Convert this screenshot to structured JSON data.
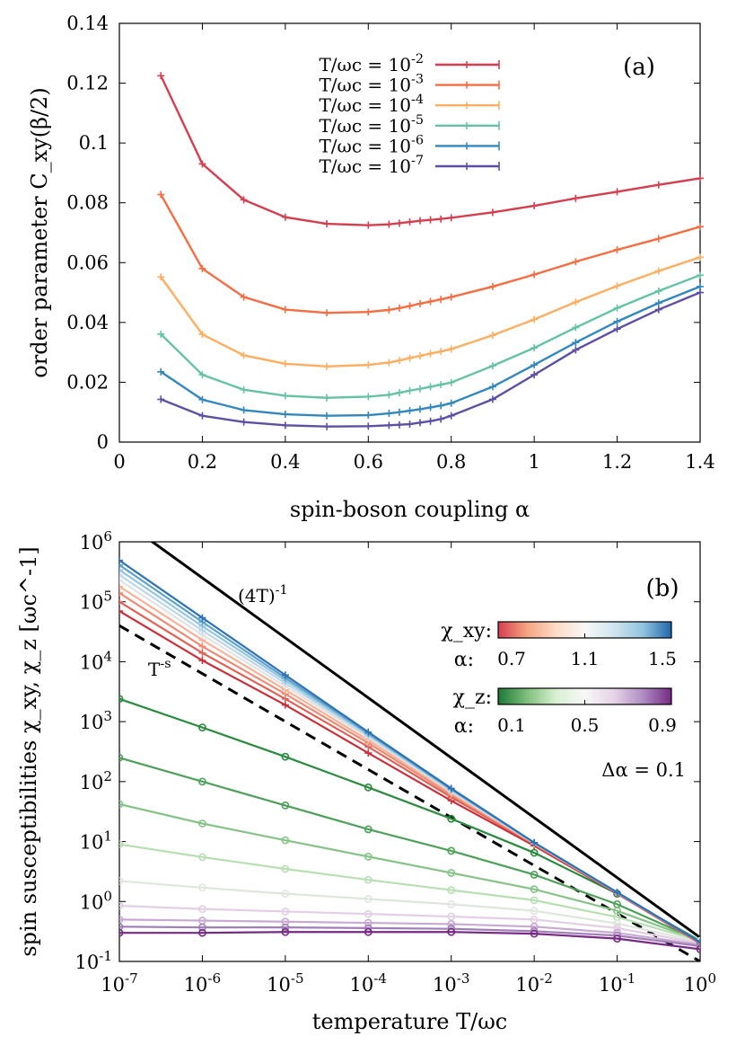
{
  "chart_data": [
    {
      "type": "line",
      "panel_label": "(a)",
      "xlabel": "spin-boson coupling α",
      "ylabel": "order parameter C_xy(β/2)",
      "xlim": [
        0,
        1.4
      ],
      "ylim": [
        0,
        0.14
      ],
      "xscale": "linear",
      "yscale": "linear",
      "xticks": [
        "0",
        "0.2",
        "0.4",
        "0.6",
        "0.8",
        "1",
        "1.2",
        "1.4"
      ],
      "yticks": [
        "0",
        "0.02",
        "0.04",
        "0.06",
        "0.08",
        "0.1",
        "0.12",
        "0.14"
      ],
      "grid": false,
      "legend_position": "top-center",
      "x": [
        0.1,
        0.2,
        0.3,
        0.4,
        0.5,
        0.6,
        0.65,
        0.675,
        0.7,
        0.725,
        0.75,
        0.775,
        0.8,
        0.9,
        1.0,
        1.1,
        1.2,
        1.3,
        1.4
      ],
      "series": [
        {
          "name": "T/ωc = 10^-2",
          "color": "#d53e4f",
          "values": [
            0.1225,
            0.093,
            0.081,
            0.0752,
            0.073,
            0.0725,
            0.0728,
            0.0732,
            0.0736,
            0.074,
            0.0743,
            0.0746,
            0.075,
            0.0768,
            0.079,
            0.0815,
            0.0837,
            0.086,
            0.0882
          ]
        },
        {
          "name": "T/ωc = 10^-3",
          "color": "#f46d43",
          "values": [
            0.0828,
            0.058,
            0.0485,
            0.0443,
            0.0432,
            0.0435,
            0.0442,
            0.0448,
            0.0455,
            0.0463,
            0.047,
            0.0477,
            0.0485,
            0.052,
            0.056,
            0.0603,
            0.0643,
            0.068,
            0.072
          ]
        },
        {
          "name": "T/ωc = 10^-4",
          "color": "#fdae61",
          "values": [
            0.0552,
            0.036,
            0.029,
            0.0262,
            0.0253,
            0.0258,
            0.0266,
            0.0273,
            0.0281,
            0.0288,
            0.0296,
            0.0303,
            0.0311,
            0.0357,
            0.041,
            0.0468,
            0.0522,
            0.0572,
            0.0618
          ]
        },
        {
          "name": "T/ωc = 10^-5",
          "color": "#66c2a5",
          "values": [
            0.0361,
            0.0225,
            0.0175,
            0.0155,
            0.0148,
            0.0152,
            0.0158,
            0.0165,
            0.0172,
            0.0178,
            0.0185,
            0.0192,
            0.0199,
            0.0255,
            0.0315,
            0.0383,
            0.0448,
            0.0505,
            0.0558
          ]
        },
        {
          "name": "T/ωc = 10^-6",
          "color": "#3288bd",
          "values": [
            0.0235,
            0.0142,
            0.0107,
            0.0093,
            0.0088,
            0.009,
            0.0096,
            0.01,
            0.0105,
            0.011,
            0.0116,
            0.0122,
            0.013,
            0.0185,
            0.0258,
            0.0333,
            0.0403,
            0.0465,
            0.052
          ]
        },
        {
          "name": "T/ωc = 10^-7",
          "color": "#5e4fa2",
          "values": [
            0.0143,
            0.0088,
            0.0067,
            0.0056,
            0.0052,
            0.0053,
            0.0056,
            0.0058,
            0.006,
            0.0065,
            0.007,
            0.0077,
            0.0088,
            0.0143,
            0.0225,
            0.0308,
            0.0378,
            0.0443,
            0.05
          ]
        }
      ]
    },
    {
      "type": "line",
      "panel_label": "(b)",
      "xlabel": "temperature T/ωc",
      "ylabel": "spin susceptibilities χ_xy, χ_z [ωc^-1]",
      "xscale": "log",
      "yscale": "log",
      "xlim": [
        1e-07,
        1
      ],
      "ylim": [
        0.1,
        1000000
      ],
      "xticks": [
        "10^-7",
        "10^-6",
        "10^-5",
        "10^-4",
        "10^-3",
        "10^-2",
        "10^-1",
        "10^0"
      ],
      "yticks": [
        "10^-1",
        "10^0",
        "10^1",
        "10^2",
        "10^3",
        "10^4",
        "10^5",
        "10^6"
      ],
      "grid": false,
      "x": [
        1e-07,
        1e-06,
        1e-05,
        0.0001,
        0.001,
        0.01,
        0.1,
        1
      ],
      "reference_lines": [
        {
          "label": "(4T)^-1",
          "style": "solid",
          "color": "#000000",
          "x": [
            1e-07,
            1
          ],
          "values": [
            2500000,
            0.25
          ]
        },
        {
          "label": "T^-s",
          "style": "dashed",
          "color": "#000000",
          "x": [
            1e-07,
            1
          ],
          "values": [
            40000,
            0.1
          ]
        }
      ],
      "colorbars": [
        {
          "quantity": "χ_xy:",
          "param_label": "α:",
          "tick_labels": [
            "0.7",
            "1.1",
            "1.5"
          ],
          "colors": [
            "#d53e4f",
            "#f4a582",
            "#fddbc7",
            "#f7f7f7",
            "#d1e5f0",
            "#92c5de",
            "#2166ac"
          ]
        },
        {
          "quantity": "χ_z:",
          "param_label": "α:",
          "tick_labels": [
            "0.1",
            "0.5",
            "0.9"
          ],
          "colors": [
            "#1b7837",
            "#7fbf7b",
            "#d9f0d3",
            "#f7f7f7",
            "#e7d4e8",
            "#af8dc3",
            "#762a83"
          ]
        }
      ],
      "step_annotation": "Δα = 0.1",
      "series_xy": [
        {
          "alpha": 0.7,
          "color": "#c9303a",
          "values": [
            70000,
            10500,
            1900,
            300,
            48,
            8.5,
            1.35,
            0.2
          ]
        },
        {
          "alpha": 0.8,
          "color": "#e06155",
          "values": [
            100000,
            14000,
            2400,
            380,
            55,
            9.0,
            1.38,
            0.2
          ]
        },
        {
          "alpha": 0.9,
          "color": "#ef8a74",
          "values": [
            140000,
            18000,
            2900,
            440,
            60,
            9.2,
            1.4,
            0.21
          ]
        },
        {
          "alpha": 1.0,
          "color": "#f6b196",
          "values": [
            180000,
            23000,
            3400,
            490,
            64,
            9.3,
            1.4,
            0.21
          ]
        },
        {
          "alpha": 1.1,
          "color": "#e2e2e2",
          "values": [
            230000,
            28000,
            3900,
            540,
            68,
            9.4,
            1.4,
            0.21
          ]
        },
        {
          "alpha": 1.2,
          "color": "#bcd7e9",
          "values": [
            280000,
            33000,
            4400,
            580,
            71,
            9.5,
            1.41,
            0.21
          ]
        },
        {
          "alpha": 1.3,
          "color": "#92c5de",
          "values": [
            340000,
            39000,
            4900,
            610,
            73,
            9.5,
            1.41,
            0.21
          ]
        },
        {
          "alpha": 1.4,
          "color": "#5fa2cc",
          "values": [
            410000,
            46000,
            5400,
            640,
            75,
            9.6,
            1.41,
            0.21
          ]
        },
        {
          "alpha": 1.5,
          "color": "#2f72b4",
          "values": [
            490000,
            54000,
            6000,
            670,
            77,
            9.6,
            1.42,
            0.21
          ]
        }
      ],
      "series_z": [
        {
          "alpha": 0.1,
          "color": "#2a8a3e",
          "values": [
            2400,
            800,
            260,
            80,
            24,
            6.5,
            1.35,
            0.22
          ]
        },
        {
          "alpha": 0.2,
          "color": "#4ea05a",
          "values": [
            250,
            100,
            40,
            16,
            7.0,
            2.8,
            0.9,
            0.22
          ]
        },
        {
          "alpha": 0.3,
          "color": "#86c386",
          "values": [
            42,
            20,
            10.5,
            5.6,
            3.0,
            1.6,
            0.7,
            0.22
          ]
        },
        {
          "alpha": 0.4,
          "color": "#b7dfb2",
          "values": [
            9.0,
            5.5,
            3.5,
            2.3,
            1.55,
            1.05,
            0.55,
            0.22
          ]
        },
        {
          "alpha": 0.5,
          "color": "#dfe6dd",
          "values": [
            2.2,
            1.7,
            1.35,
            1.1,
            0.9,
            0.7,
            0.43,
            0.21
          ]
        },
        {
          "alpha": 0.6,
          "color": "#e3cfe5",
          "values": [
            0.85,
            0.75,
            0.68,
            0.62,
            0.56,
            0.5,
            0.36,
            0.2
          ]
        },
        {
          "alpha": 0.7,
          "color": "#c9a8d2",
          "values": [
            0.5,
            0.48,
            0.46,
            0.44,
            0.42,
            0.38,
            0.3,
            0.19
          ]
        },
        {
          "alpha": 0.8,
          "color": "#a07fb8",
          "values": [
            0.38,
            0.37,
            0.37,
            0.36,
            0.35,
            0.32,
            0.27,
            0.18
          ]
        },
        {
          "alpha": 0.9,
          "color": "#762a83",
          "values": [
            0.3,
            0.3,
            0.31,
            0.31,
            0.31,
            0.29,
            0.24,
            0.16
          ]
        }
      ]
    }
  ]
}
